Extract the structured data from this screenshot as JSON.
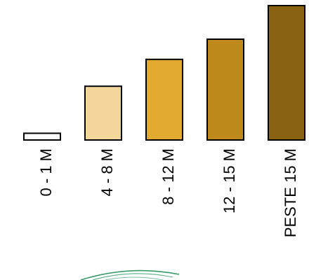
{
  "chart_data": {
    "type": "bar",
    "title": "",
    "xlabel": "",
    "ylabel": "",
    "categories": [
      "0 - 1 M",
      "4 - 8 M",
      "8 - 12 M",
      "12 - 15 M",
      "PESTE 15 M"
    ],
    "values": [
      1,
      8,
      12,
      15,
      20
    ],
    "ylim": [
      0,
      20
    ],
    "colors": [
      "#ffffff",
      "#f2d69a",
      "#e2aa2e",
      "#bd8a1b",
      "#8a6213"
    ],
    "stroke_color": "#000000",
    "grid": false,
    "legend": "none"
  }
}
